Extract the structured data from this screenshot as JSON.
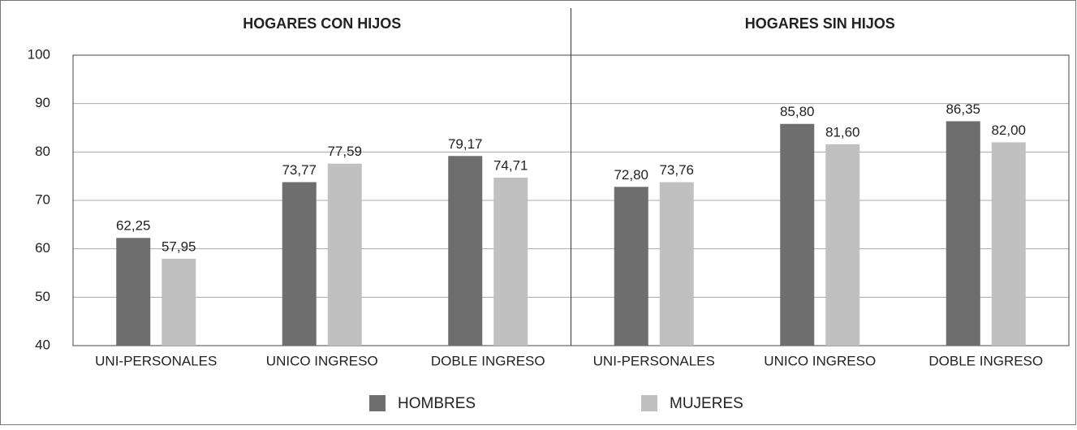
{
  "chart_data": {
    "type": "bar",
    "panel_titles": [
      "HOGARES CON HIJOS",
      "HOGARES SIN HIJOS"
    ],
    "categories": [
      "UNI-PERSONALES",
      "UNICO INGRESO",
      "DOBLE INGRESO",
      "UNI-PERSONALES",
      "UNICO INGRESO",
      "DOBLE INGRESO"
    ],
    "series": [
      {
        "name": "HOMBRES",
        "color": "#6e6e6e",
        "values": [
          62.25,
          73.77,
          79.17,
          72.8,
          85.8,
          86.35
        ],
        "value_labels": [
          "62,25",
          "73,77",
          "79,17",
          "72,80",
          "85,80",
          "86,35"
        ]
      },
      {
        "name": "MUJERES",
        "color": "#c0c0c0",
        "values": [
          57.95,
          77.59,
          74.71,
          73.76,
          81.6,
          82.0
        ],
        "value_labels": [
          "57,95",
          "77,59",
          "74,71",
          "73,76",
          "81,60",
          "82,00"
        ]
      }
    ],
    "ylim": [
      40,
      100
    ],
    "yticks": [
      40,
      50,
      60,
      70,
      80,
      90,
      100
    ],
    "grid": true
  }
}
